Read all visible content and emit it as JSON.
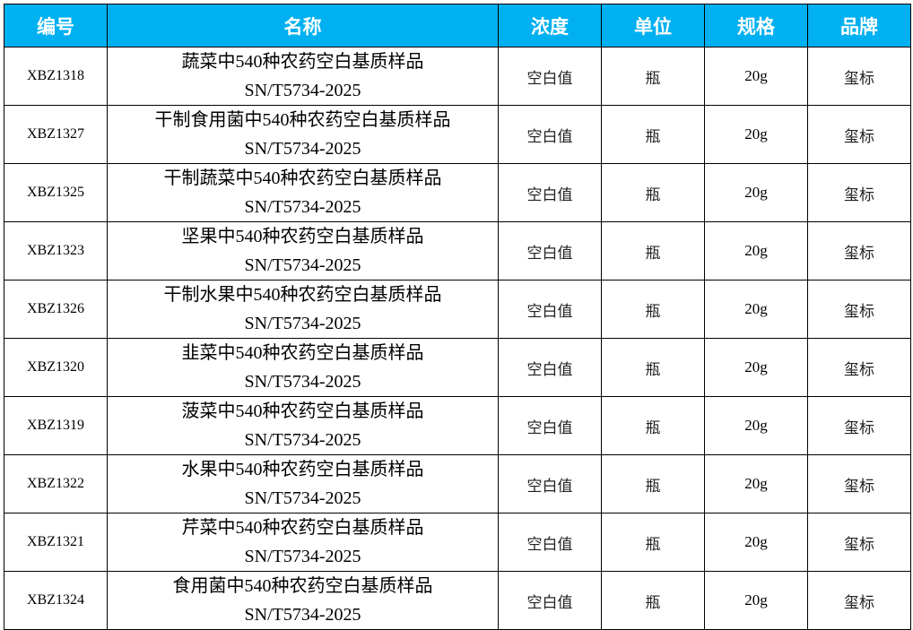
{
  "header": {
    "accent": "#00B0F0",
    "columns": [
      "编号",
      "名称",
      "浓度",
      "单位",
      "规格",
      "品牌"
    ]
  },
  "rows": [
    {
      "code": "XBZ1318",
      "name": "蔬菜中540种农药空白基质样品",
      "standard": "SN/T5734-2025",
      "conc": "空白值",
      "unit": "瓶",
      "spec": "20g",
      "brand": "玺标"
    },
    {
      "code": "XBZ1327",
      "name": "干制食用菌中540种农药空白基质样品",
      "standard": "SN/T5734-2025",
      "conc": "空白值",
      "unit": "瓶",
      "spec": "20g",
      "brand": "玺标"
    },
    {
      "code": "XBZ1325",
      "name": "干制蔬菜中540种农药空白基质样品",
      "standard": "SN/T5734-2025",
      "conc": "空白值",
      "unit": "瓶",
      "spec": "20g",
      "brand": "玺标"
    },
    {
      "code": "XBZ1323",
      "name": "坚果中540种农药空白基质样品",
      "standard": "SN/T5734-2025",
      "conc": "空白值",
      "unit": "瓶",
      "spec": "20g",
      "brand": "玺标"
    },
    {
      "code": "XBZ1326",
      "name": "干制水果中540种农药空白基质样品",
      "standard": "SN/T5734-2025",
      "conc": "空白值",
      "unit": "瓶",
      "spec": "20g",
      "brand": "玺标"
    },
    {
      "code": "XBZ1320",
      "name": "韭菜中540种农药空白基质样品",
      "standard": "SN/T5734-2025",
      "conc": "空白值",
      "unit": "瓶",
      "spec": "20g",
      "brand": "玺标"
    },
    {
      "code": "XBZ1319",
      "name": "菠菜中540种农药空白基质样品",
      "standard": "SN/T5734-2025",
      "conc": "空白值",
      "unit": "瓶",
      "spec": "20g",
      "brand": "玺标"
    },
    {
      "code": "XBZ1322",
      "name": "水果中540种农药空白基质样品",
      "standard": "SN/T5734-2025",
      "conc": "空白值",
      "unit": "瓶",
      "spec": "20g",
      "brand": "玺标"
    },
    {
      "code": "XBZ1321",
      "name": "芹菜中540种农药空白基质样品",
      "standard": "SN/T5734-2025",
      "conc": "空白值",
      "unit": "瓶",
      "spec": "20g",
      "brand": "玺标"
    },
    {
      "code": "XBZ1324",
      "name": "食用菌中540种农药空白基质样品",
      "standard": "SN/T5734-2025",
      "conc": "空白值",
      "unit": "瓶",
      "spec": "20g",
      "brand": "玺标"
    }
  ]
}
